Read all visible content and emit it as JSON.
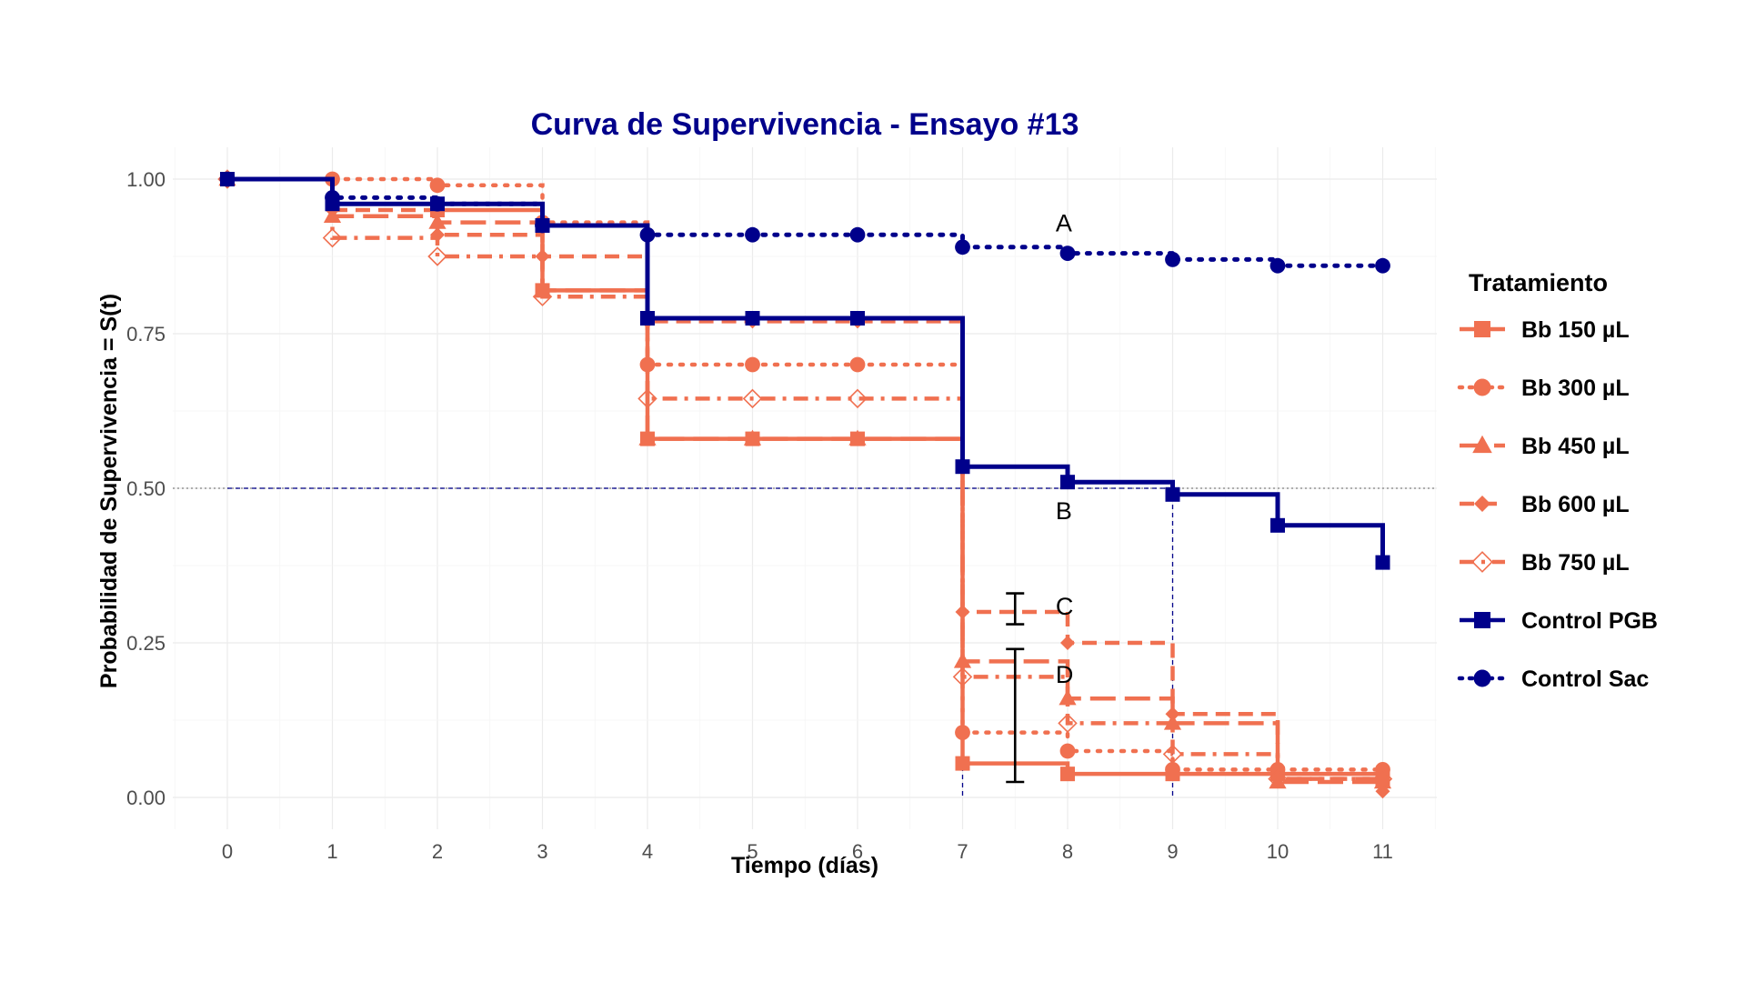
{
  "chart_data": {
    "type": "line",
    "title": "Curva de Supervivencia - Ensayo #13",
    "xlabel": "Tiempo (días)",
    "ylabel": "Probabilidad de Supervivencia = S(t)",
    "xlim": [
      0,
      11
    ],
    "ylim": [
      0,
      1
    ],
    "x_ticks": [
      "0",
      "1",
      "2",
      "3",
      "4",
      "5",
      "6",
      "7",
      "8",
      "9",
      "10",
      "11"
    ],
    "y_ticks": [
      "0.00",
      "0.25",
      "0.50",
      "0.75",
      "1.00"
    ],
    "grid": true,
    "step": true,
    "legend": {
      "title": "Tratamiento",
      "position": "right"
    },
    "reference_line_y": 0.5,
    "median_markers_x": [
      7,
      9
    ],
    "series": [
      {
        "name": "Bb 150 µL",
        "color": "#F07050",
        "dash": "solid",
        "marker": "square",
        "x": [
          0,
          1,
          2,
          3,
          4,
          5,
          6,
          7,
          8,
          9,
          10,
          11
        ],
        "y": [
          1.0,
          0.96,
          0.95,
          0.82,
          0.58,
          0.58,
          0.58,
          0.055,
          0.038,
          0.038,
          0.038,
          0.03
        ]
      },
      {
        "name": "Bb 300 µL",
        "color": "#F07050",
        "dash": "dotted",
        "marker": "circle",
        "x": [
          0,
          1,
          2,
          3,
          4,
          5,
          6,
          7,
          8,
          9,
          10,
          11
        ],
        "y": [
          1.0,
          1.0,
          0.99,
          0.93,
          0.7,
          0.7,
          0.7,
          0.105,
          0.075,
          0.045,
          0.045,
          0.045
        ]
      },
      {
        "name": "Bb 450 µL",
        "color": "#F07050",
        "dash": "longdash",
        "marker": "triangle",
        "x": [
          0,
          1,
          2,
          3,
          4,
          5,
          6,
          7,
          8,
          9,
          10,
          11
        ],
        "y": [
          1.0,
          0.94,
          0.93,
          0.82,
          0.58,
          0.58,
          0.58,
          0.22,
          0.16,
          0.12,
          0.025,
          0.025
        ]
      },
      {
        "name": "Bb 600 µL",
        "color": "#F07050",
        "dash": "dashed",
        "marker": "diamond",
        "x": [
          0,
          1,
          2,
          3,
          4,
          5,
          6,
          7,
          8,
          9,
          10,
          11
        ],
        "y": [
          1.0,
          0.95,
          0.91,
          0.875,
          0.77,
          0.77,
          0.77,
          0.3,
          0.25,
          0.135,
          0.03,
          0.01
        ]
      },
      {
        "name": "Bb 750 µL",
        "color": "#F07050",
        "dash": "dashdot",
        "marker": "diamond-open",
        "x": [
          0,
          1,
          2,
          3,
          4,
          5,
          6,
          7,
          8,
          9,
          10,
          11
        ],
        "y": [
          1.0,
          0.905,
          0.875,
          0.81,
          0.645,
          0.645,
          0.645,
          0.195,
          0.12,
          0.07,
          0.03,
          0.03
        ]
      },
      {
        "name": "Control PGB",
        "color": "#00008B",
        "dash": "solid",
        "marker": "square",
        "x": [
          0,
          1,
          2,
          3,
          4,
          5,
          6,
          7,
          8,
          9,
          10,
          11
        ],
        "y": [
          1.0,
          0.96,
          0.96,
          0.925,
          0.775,
          0.775,
          0.775,
          0.535,
          0.51,
          0.49,
          0.44,
          0.38
        ]
      },
      {
        "name": "Control Sac",
        "color": "#00008B",
        "dash": "dotted",
        "marker": "circle",
        "x": [
          0,
          1,
          2,
          3,
          4,
          5,
          6,
          7,
          8,
          9,
          10,
          11
        ],
        "y": [
          1.0,
          0.97,
          0.96,
          0.925,
          0.91,
          0.91,
          0.91,
          0.89,
          0.88,
          0.87,
          0.86,
          0.86
        ]
      }
    ],
    "error_bars": [
      {
        "x": 7.5,
        "low": 0.28,
        "high": 0.33
      },
      {
        "x": 7.5,
        "low": 0.025,
        "high": 0.24
      }
    ],
    "annotations": [
      {
        "text": "A",
        "x": 7.8,
        "y": 0.93
      },
      {
        "text": "B",
        "x": 7.8,
        "y": 0.465
      },
      {
        "text": "C",
        "x": 7.8,
        "y": 0.31
      },
      {
        "text": "D",
        "x": 7.8,
        "y": 0.2
      }
    ]
  }
}
